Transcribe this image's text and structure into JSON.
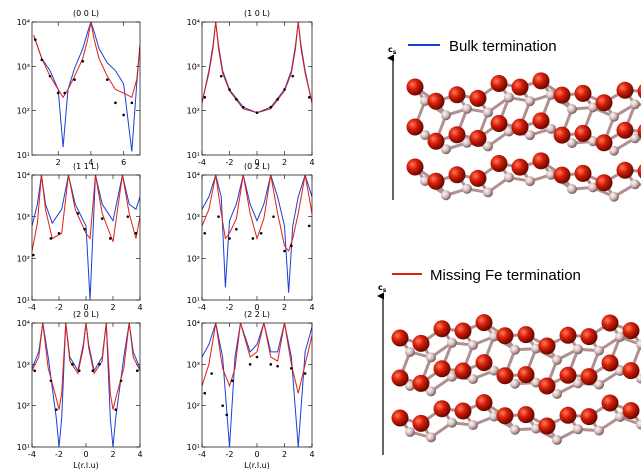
{
  "chart_data": [
    {
      "type": "line",
      "title": "(0 0 L)",
      "xlim": [
        0.4,
        7
      ],
      "xticks": [
        2,
        4,
        6
      ],
      "ylim": [
        10,
        10000
      ],
      "yscale": "log",
      "yticks": [
        {
          "value": 10,
          "label": "10¹"
        },
        {
          "value": 100,
          "label": "10²"
        },
        {
          "value": 1000,
          "label": "10³"
        },
        {
          "value": 10000,
          "label": "10⁴"
        }
      ],
      "series": [
        {
          "name": "Bulk termination",
          "color": "#1a3fd6",
          "x": [
            0.5,
            1,
            1.5,
            2,
            2.3,
            2.6,
            3,
            3.5,
            3.8,
            4,
            4.2,
            4.5,
            5,
            5.5,
            6,
            6.5,
            6.8,
            7
          ],
          "values": [
            5000,
            1500,
            800,
            300,
            15,
            300,
            900,
            2500,
            6000,
            10000,
            6000,
            2500,
            1200,
            800,
            400,
            12,
            400,
            3000
          ]
        },
        {
          "name": "Missing Fe termination",
          "color": "#e0200f",
          "x": [
            0.5,
            1,
            1.5,
            2,
            2.3,
            2.6,
            3,
            3.5,
            3.8,
            4,
            4.2,
            4.5,
            5,
            5.5,
            6,
            6.5,
            6.8,
            7
          ],
          "values": [
            5000,
            1500,
            600,
            300,
            200,
            300,
            600,
            1500,
            4000,
            10000,
            4000,
            1500,
            600,
            300,
            250,
            200,
            500,
            3000
          ]
        },
        {
          "color": "#000000",
          "mode": "markers",
          "x": [
            0.6,
            1,
            1.5,
            2,
            2.4,
            3,
            3.5,
            5,
            5.5,
            6,
            6.5
          ],
          "values": [
            4000,
            1400,
            600,
            250,
            250,
            500,
            1300,
            500,
            150,
            80,
            150
          ]
        }
      ]
    },
    {
      "type": "line",
      "title": "(1 0 L)",
      "xlim": [
        -4,
        4
      ],
      "xticks": [
        -4,
        -2,
        0,
        2,
        4
      ],
      "ylim": [
        10,
        10000
      ],
      "yscale": "log",
      "yticks": [
        {
          "value": 10,
          "label": "10¹"
        },
        {
          "value": 100,
          "label": "10²"
        },
        {
          "value": 1000,
          "label": "10³"
        },
        {
          "value": 10000,
          "label": "10⁴"
        }
      ],
      "series": [
        {
          "color": "#1a3fd6",
          "x": [
            -4,
            -3.5,
            -3.2,
            -3,
            -2.8,
            -2.5,
            -2,
            -1,
            0,
            1,
            2,
            2.5,
            2.8,
            3,
            3.2,
            3.5,
            4
          ],
          "values": [
            150,
            800,
            3000,
            10000,
            3000,
            800,
            300,
            120,
            90,
            120,
            300,
            800,
            3000,
            10000,
            3000,
            800,
            150
          ]
        },
        {
          "color": "#e0200f",
          "x": [
            -4,
            -3.5,
            -3.2,
            -3,
            -2.8,
            -2.5,
            -2,
            -1,
            0,
            1,
            2,
            2.5,
            2.8,
            3,
            3.2,
            3.5,
            4
          ],
          "values": [
            150,
            700,
            2500,
            10000,
            2500,
            700,
            280,
            110,
            90,
            110,
            280,
            700,
            2500,
            10000,
            2500,
            700,
            150
          ]
        },
        {
          "color": "#000000",
          "mode": "markers",
          "x": [
            -3.8,
            -2.6,
            -2,
            -1.5,
            -1,
            0,
            1,
            1.5,
            2,
            2.6,
            3.8
          ],
          "values": [
            200,
            600,
            300,
            180,
            120,
            90,
            120,
            180,
            300,
            600,
            200
          ]
        }
      ]
    },
    {
      "type": "line",
      "title": "(1 1 L)",
      "xlim": [
        -4,
        4
      ],
      "xticks": [
        -4,
        -2,
        0,
        2,
        4
      ],
      "ylim": [
        10,
        10000
      ],
      "yscale": "log",
      "yticks": [
        {
          "value": 10,
          "label": "10¹"
        },
        {
          "value": 100,
          "label": "10²"
        },
        {
          "value": 1000,
          "label": "10³"
        },
        {
          "value": 10000,
          "label": "10⁴"
        }
      ],
      "series": [
        {
          "color": "#1a3fd6",
          "x": [
            -4,
            -3.6,
            -3.3,
            -3,
            -2.5,
            -1.8,
            -1.3,
            -0.8,
            0,
            0.3,
            0.7,
            1.2,
            2,
            2.7,
            3.2,
            3.7,
            4
          ],
          "values": [
            600,
            2000,
            10000,
            2000,
            700,
            1500,
            10000,
            2000,
            600,
            10,
            10000,
            2000,
            800,
            10000,
            2000,
            1500,
            3000
          ]
        },
        {
          "color": "#e0200f",
          "x": [
            -4,
            -3.6,
            -3.3,
            -3,
            -2.5,
            -1.8,
            -1.3,
            -0.8,
            0,
            0.3,
            0.7,
            1.2,
            2,
            2.7,
            3.2,
            3.7,
            4
          ],
          "values": [
            150,
            700,
            10000,
            1500,
            300,
            400,
            10000,
            1500,
            400,
            300,
            10000,
            1200,
            250,
            10000,
            1200,
            300,
            1000
          ]
        },
        {
          "color": "#000000",
          "mode": "markers",
          "x": [
            -3.9,
            -2.6,
            -2,
            -0.6,
            -0.1,
            1.2,
            1.8,
            3.1,
            3.7
          ],
          "values": [
            120,
            300,
            400,
            1200,
            500,
            900,
            300,
            1000,
            400
          ]
        }
      ]
    },
    {
      "type": "line",
      "title": "(0 2 L)",
      "xlim": [
        -4,
        4
      ],
      "xticks": [
        -4,
        -2,
        0,
        2,
        4
      ],
      "ylim": [
        10,
        10000
      ],
      "yscale": "log",
      "yticks": [
        {
          "value": 10,
          "label": "10¹"
        },
        {
          "value": 100,
          "label": "10²"
        },
        {
          "value": 1000,
          "label": "10³"
        },
        {
          "value": 10000,
          "label": "10⁴"
        }
      ],
      "series": [
        {
          "color": "#1a3fd6",
          "x": [
            -4,
            -3.5,
            -3,
            -2.6,
            -2.3,
            -2,
            -1.5,
            -1,
            -0.5,
            0,
            0.5,
            1,
            1.5,
            2,
            2.3,
            2.6,
            3,
            3.5,
            4
          ],
          "values": [
            1500,
            3000,
            10000,
            3000,
            20,
            800,
            2000,
            10000,
            2000,
            800,
            2000,
            10000,
            3000,
            600,
            15,
            600,
            3000,
            10000,
            3000
          ]
        },
        {
          "color": "#e0200f",
          "x": [
            -4,
            -3.5,
            -3,
            -2.6,
            -2.3,
            -2,
            -1.5,
            -1,
            -0.5,
            0,
            0.5,
            1,
            1.5,
            2,
            2.3,
            2.6,
            3,
            3.5,
            4
          ],
          "values": [
            600,
            1500,
            10000,
            1200,
            300,
            400,
            900,
            10000,
            1200,
            300,
            900,
            10000,
            1200,
            200,
            150,
            300,
            1200,
            10000,
            1200
          ]
        },
        {
          "color": "#000000",
          "mode": "markers",
          "x": [
            -3.8,
            -2.8,
            -2,
            -1.5,
            -0.3,
            0.3,
            1.2,
            2,
            2.5,
            3.8
          ],
          "values": [
            400,
            1000,
            300,
            500,
            300,
            400,
            1000,
            150,
            200,
            600
          ]
        }
      ]
    },
    {
      "type": "line",
      "title": "(2 0 L)",
      "xlabel": "L(r.l.u)",
      "xlim": [
        -4,
        4
      ],
      "xticks": [
        -4,
        -2,
        0,
        2,
        4
      ],
      "ylim": [
        10,
        10000
      ],
      "yscale": "log",
      "yticks": [
        {
          "value": 10,
          "label": "10¹"
        },
        {
          "value": 100,
          "label": "10²"
        },
        {
          "value": 1000,
          "label": "10³"
        },
        {
          "value": 10000,
          "label": "10⁴"
        }
      ],
      "series": [
        {
          "color": "#1a3fd6",
          "x": [
            -4,
            -3.5,
            -3.2,
            -2.8,
            -2.2,
            -2,
            -1.8,
            -1.5,
            -1.2,
            -0.6,
            -0.2,
            0,
            0.2,
            0.6,
            1.2,
            1.5,
            1.8,
            2,
            2.2,
            2.8,
            3.2,
            3.5,
            4
          ],
          "values": [
            800,
            2000,
            10000,
            1500,
            50,
            10,
            50,
            10000,
            1500,
            700,
            3000,
            10000,
            3000,
            700,
            1500,
            10000,
            50,
            10,
            50,
            1500,
            10000,
            2000,
            800
          ]
        },
        {
          "color": "#e0200f",
          "x": [
            -4,
            -3.5,
            -3.2,
            -2.8,
            -2.2,
            -2,
            -1.8,
            -1.5,
            -1.2,
            -0.6,
            -0.2,
            0,
            0.2,
            0.6,
            1.2,
            1.5,
            1.8,
            2,
            2.2,
            2.8,
            3.2,
            3.5,
            4
          ],
          "values": [
            700,
            1500,
            10000,
            800,
            150,
            80,
            200,
            10000,
            1200,
            600,
            2500,
            10000,
            2500,
            600,
            1200,
            10000,
            200,
            80,
            150,
            800,
            10000,
            1500,
            700
          ]
        },
        {
          "color": "#000000",
          "mode": "markers",
          "x": [
            -3.8,
            -2.6,
            -2.2,
            -1,
            -0.5,
            0.5,
            1,
            2.2,
            2.6,
            3.8
          ],
          "values": [
            700,
            400,
            80,
            1000,
            700,
            700,
            1000,
            80,
            400,
            700
          ]
        }
      ]
    },
    {
      "type": "line",
      "title": "(2 2 L)",
      "xlabel": "L(r.l.u)",
      "xlim": [
        -4,
        4
      ],
      "xticks": [
        -4,
        -2,
        0,
        2,
        4
      ],
      "ylim": [
        10,
        10000
      ],
      "yscale": "log",
      "yticks": [
        {
          "value": 10,
          "label": "10¹"
        },
        {
          "value": 100,
          "label": "10²"
        },
        {
          "value": 1000,
          "label": "10³"
        },
        {
          "value": 10000,
          "label": "10⁴"
        }
      ],
      "series": [
        {
          "color": "#1a3fd6",
          "x": [
            -4,
            -3.5,
            -3,
            -2.5,
            -2,
            -1.6,
            -1.2,
            -0.5,
            0,
            0.5,
            1,
            1.5,
            2,
            2.5,
            3,
            3.5,
            4
          ],
          "values": [
            1500,
            3000,
            10000,
            1500,
            10,
            1500,
            10000,
            2000,
            3000,
            10000,
            2000,
            2000,
            10000,
            1500,
            10,
            2000,
            8000
          ]
        },
        {
          "color": "#e0200f",
          "x": [
            -4,
            -3.5,
            -3,
            -2.5,
            -2,
            -1.6,
            -1.2,
            -0.5,
            0,
            0.5,
            1,
            1.5,
            2,
            2.5,
            3,
            3.5,
            4
          ],
          "values": [
            300,
            1000,
            10000,
            800,
            300,
            800,
            10000,
            1500,
            2000,
            10000,
            1500,
            1200,
            10000,
            1000,
            200,
            1000,
            5000
          ]
        },
        {
          "color": "#000000",
          "mode": "markers",
          "x": [
            -3.8,
            -3.3,
            -2.5,
            -2.2,
            -1.8,
            -0.5,
            0,
            1,
            1.5,
            2.5,
            3.5
          ],
          "values": [
            200,
            600,
            100,
            60,
            400,
            1000,
            1500,
            1000,
            900,
            800,
            600
          ]
        }
      ]
    }
  ],
  "structures": [
    {
      "axis_label": "c",
      "axis_subscript": "s"
    },
    {
      "axis_label": "c",
      "axis_subscript": "s"
    }
  ]
}
